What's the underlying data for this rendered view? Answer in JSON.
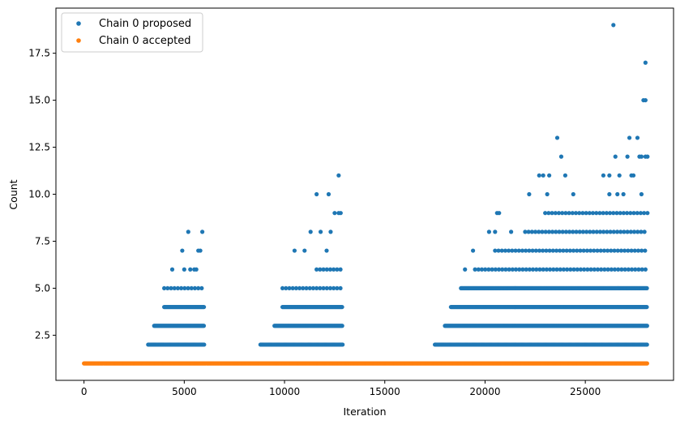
{
  "chart_data": {
    "type": "scatter",
    "title": "",
    "xlabel": "Iteration",
    "ylabel": "Count",
    "xlim": [
      -1400,
      29400
    ],
    "ylim": [
      0.1,
      19.9
    ],
    "xticks": [
      0,
      5000,
      10000,
      15000,
      20000,
      25000
    ],
    "yticks": [
      2.5,
      5.0,
      7.5,
      10.0,
      12.5,
      15.0,
      17.5
    ],
    "xtick_labels": [
      "0",
      "5000",
      "10000",
      "15000",
      "20000",
      "25000"
    ],
    "ytick_labels": [
      "2.5",
      "5.0",
      "7.5",
      "10.0",
      "12.5",
      "15.0",
      "17.5"
    ],
    "grid": false,
    "legend": "top-left",
    "series": [
      {
        "name": "Chain 0 proposed",
        "color": "#1f77b4",
        "bands": [
          {
            "y": 2,
            "x_start": 3200,
            "x_end": 6000
          },
          {
            "y": 3,
            "x_start": 3500,
            "x_end": 6000
          },
          {
            "y": 4,
            "x_start": 4000,
            "x_end": 6000
          },
          {
            "y": 5,
            "x_start": 4000,
            "x_end": 6000,
            "sparse": true
          },
          {
            "y": 2,
            "x_start": 8800,
            "x_end": 12900
          },
          {
            "y": 3,
            "x_start": 9500,
            "x_end": 12900
          },
          {
            "y": 4,
            "x_start": 9900,
            "x_end": 12900
          },
          {
            "y": 5,
            "x_start": 9900,
            "x_end": 12900,
            "sparse": true
          },
          {
            "y": 6,
            "x_start": 11600,
            "x_end": 12900,
            "sparse": true
          },
          {
            "y": 2,
            "x_start": 17500,
            "x_end": 28100
          },
          {
            "y": 3,
            "x_start": 18000,
            "x_end": 28100
          },
          {
            "y": 4,
            "x_start": 18300,
            "x_end": 28100
          },
          {
            "y": 5,
            "x_start": 18800,
            "x_end": 28100
          },
          {
            "y": 6,
            "x_start": 19500,
            "x_end": 28100,
            "sparse": true
          },
          {
            "y": 7,
            "x_start": 20500,
            "x_end": 28100,
            "sparse": true
          },
          {
            "y": 8,
            "x_start": 22000,
            "x_end": 28100,
            "sparse": true
          },
          {
            "y": 9,
            "x_start": 23000,
            "x_end": 28100,
            "sparse": true
          }
        ],
        "points": [
          [
            4400,
            6
          ],
          [
            4900,
            7
          ],
          [
            5000,
            6
          ],
          [
            5300,
            6
          ],
          [
            5500,
            6
          ],
          [
            5600,
            6
          ],
          [
            5700,
            7
          ],
          [
            5800,
            7
          ],
          [
            5200,
            8
          ],
          [
            5900,
            8
          ],
          [
            10500,
            7
          ],
          [
            11000,
            7
          ],
          [
            11300,
            8
          ],
          [
            11600,
            10
          ],
          [
            11800,
            8
          ],
          [
            12100,
            7
          ],
          [
            12200,
            10
          ],
          [
            12300,
            8
          ],
          [
            12500,
            9
          ],
          [
            12700,
            9
          ],
          [
            12800,
            9
          ],
          [
            12700,
            11
          ],
          [
            19000,
            6
          ],
          [
            19400,
            7
          ],
          [
            20200,
            8
          ],
          [
            20600,
            9
          ],
          [
            20700,
            9
          ],
          [
            20500,
            8
          ],
          [
            21300,
            8
          ],
          [
            22200,
            10
          ],
          [
            22700,
            11
          ],
          [
            22900,
            11
          ],
          [
            23200,
            11
          ],
          [
            23100,
            10
          ],
          [
            23600,
            13
          ],
          [
            23800,
            12
          ],
          [
            24000,
            11
          ],
          [
            24400,
            10
          ],
          [
            25900,
            11
          ],
          [
            26200,
            11
          ],
          [
            26400,
            19
          ],
          [
            26700,
            11
          ],
          [
            26900,
            10
          ],
          [
            27200,
            13
          ],
          [
            27400,
            11
          ],
          [
            27600,
            13
          ],
          [
            27800,
            12
          ],
          [
            27900,
            15
          ],
          [
            28000,
            15
          ],
          [
            28000,
            17
          ],
          [
            28000,
            12
          ],
          [
            27700,
            12
          ],
          [
            27100,
            12
          ],
          [
            26500,
            12
          ],
          [
            26200,
            10
          ],
          [
            27800,
            10
          ],
          [
            26600,
            10
          ],
          [
            27300,
            11
          ],
          [
            28100,
            12
          ]
        ]
      },
      {
        "name": "Chain 0 accepted",
        "color": "#ff7f0e",
        "bands": [
          {
            "y": 1,
            "x_start": 0,
            "x_end": 28100
          }
        ],
        "points": []
      }
    ]
  }
}
